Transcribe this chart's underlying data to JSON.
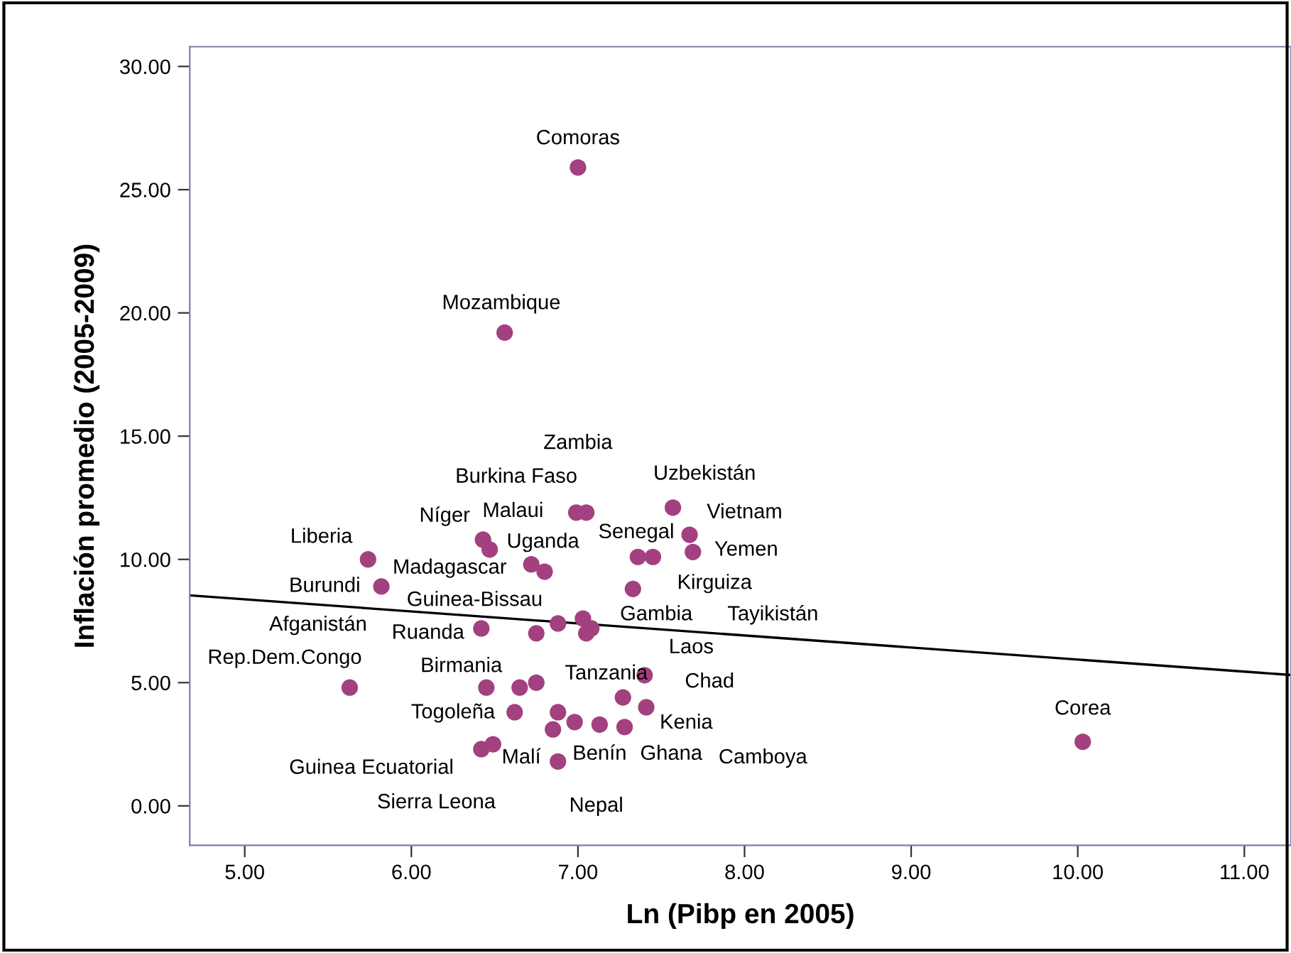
{
  "chart_data": {
    "type": "scatter",
    "xlabel": "Ln (Pibp en 2005)",
    "ylabel": "Inflación promedio (2005-2009)",
    "series": [
      {
        "color": "#a3407f",
        "marker": "circle",
        "x": [
          7.0,
          6.56,
          10.03,
          5.74,
          5.82,
          5.63,
          6.43,
          6.47,
          6.72,
          6.8,
          6.99,
          7.05,
          7.57,
          7.67,
          7.69,
          7.36,
          7.45,
          7.33,
          6.42,
          6.75,
          6.88,
          7.03,
          7.08,
          7.05,
          6.45,
          6.65,
          6.75,
          7.4,
          7.27,
          7.41,
          6.62,
          6.88,
          6.98,
          7.13,
          7.28,
          6.85,
          6.42,
          6.49,
          6.88
        ],
        "values": [
          25.9,
          19.2,
          2.6,
          10.0,
          8.9,
          4.8,
          10.8,
          10.4,
          9.8,
          9.5,
          11.9,
          11.9,
          12.1,
          11.0,
          10.3,
          10.1,
          10.1,
          8.8,
          7.2,
          7.0,
          7.4,
          7.6,
          7.2,
          7.0,
          4.8,
          4.8,
          5.0,
          5.3,
          4.4,
          4.0,
          3.8,
          3.8,
          3.4,
          3.3,
          3.2,
          3.1,
          2.3,
          2.5,
          1.8
        ]
      },
      {
        "type": "line",
        "color": "#000000",
        "marker": "none",
        "line_style": "solid",
        "x": [
          4.67,
          11.28
        ],
        "values": [
          8.54,
          5.31
        ]
      }
    ],
    "annotations": [
      "Comoras",
      "Mozambique",
      "Corea",
      "Zambia",
      "Burkina Faso",
      "Uzbekistán",
      "Níger",
      "Malaui",
      "Vietnam",
      "Liberia",
      "Uganda",
      "Senegal",
      "Yemen",
      "Madagascar",
      "Kirguiza",
      "Burundi",
      "Guinea-Bissau",
      "Afganistán",
      "Ruanda",
      "Gambia",
      "Tayikistán",
      "Laos",
      "Rep.Dem.Congo",
      "Birmania",
      "Tanzania",
      "Chad",
      "Togoleña",
      "Kenia",
      "Malí",
      "Benín",
      "Ghana",
      "Camboya",
      "Guinea Ecuatorial",
      "Sierra Leona",
      "Nepal"
    ],
    "xlim": [
      4.67,
      11.28
    ],
    "ylim": [
      -1.6,
      30.8
    ],
    "xticks": [
      {
        "value": 5,
        "label": "5.00"
      },
      {
        "value": 6,
        "label": "6.00"
      },
      {
        "value": 7,
        "label": "7.00"
      },
      {
        "value": 8,
        "label": "8.00"
      },
      {
        "value": 9,
        "label": "9.00"
      },
      {
        "value": 10,
        "label": "10.00"
      },
      {
        "value": 11,
        "label": "11.00"
      }
    ],
    "yticks": [
      {
        "value": 0,
        "label": "0.00"
      },
      {
        "value": 5,
        "label": "5.00"
      },
      {
        "value": 10,
        "label": "10.00"
      },
      {
        "value": 15,
        "label": "15.00"
      },
      {
        "value": 20,
        "label": "20.00"
      },
      {
        "value": 25,
        "label": "25.00"
      },
      {
        "value": 30,
        "label": "30.00"
      }
    ],
    "grid": false,
    "legend": false
  }
}
